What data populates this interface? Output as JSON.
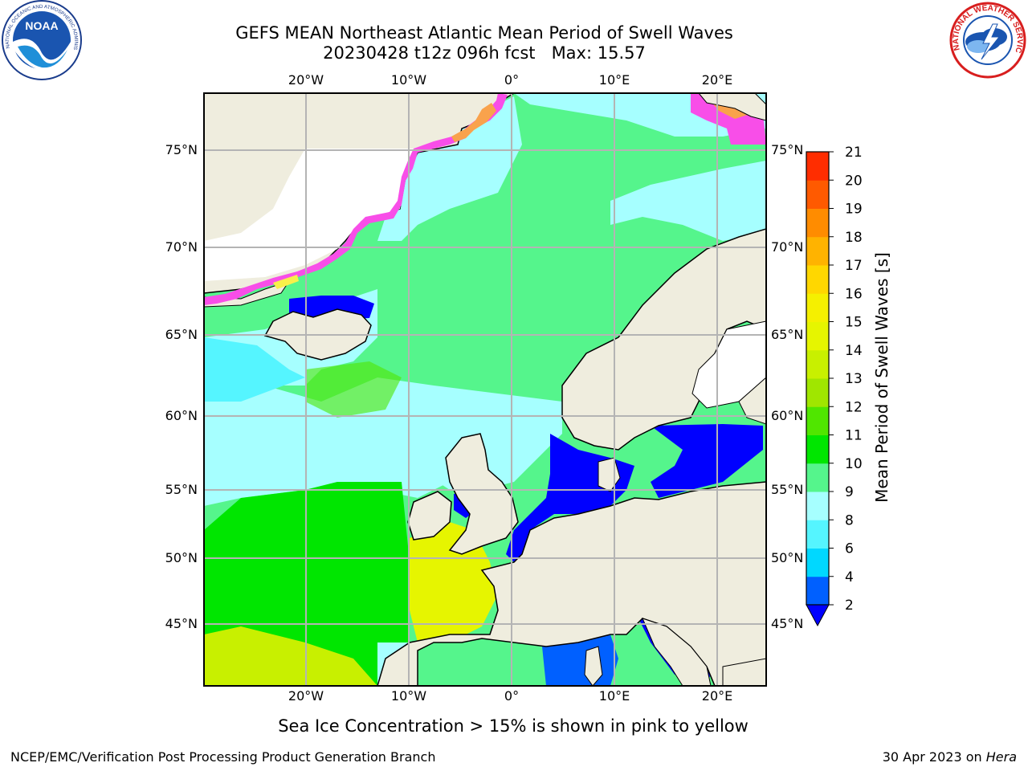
{
  "header": {
    "title_line1": "GEFS MEAN Northeast Atlantic Mean Period of Swell Waves",
    "title_line2": "20230428 t12z 096h fcst   Max: 15.57"
  },
  "logos": {
    "noaa_text": "NOAA",
    "noaa_ring_text": "NATIONAL OCEANIC AND ATMOSPHERIC ADMINISTRATION · U.S. DEPARTMENT OF COMMERCE",
    "nws_ring_text": "NATIONAL WEATHER SERVICE"
  },
  "map": {
    "lon_labels_top": [
      "20°W",
      "10°W",
      "0°",
      "10°E",
      "20°E"
    ],
    "lon_labels_bottom": [
      "20°W",
      "10°W",
      "0°",
      "10°E",
      "20°E"
    ],
    "lat_labels_left": [
      "75°N",
      "70°N",
      "65°N",
      "60°N",
      "55°N",
      "50°N",
      "45°N"
    ],
    "lat_labels_right": [
      "75°N",
      "70°N",
      "65°N",
      "60°N",
      "55°N",
      "50°N",
      "45°N"
    ],
    "colors": {
      "land": "#efedde",
      "ice_pink": "#f84ee8",
      "ice_orange": "#f9a24c",
      "ice_yellow": "#f8f04a"
    }
  },
  "colorbar": {
    "label": "Mean Period of Swell Waves [s]",
    "ticks": [
      "2",
      "4",
      "6",
      "8",
      "9",
      "10",
      "11",
      "12",
      "13",
      "14",
      "15",
      "16",
      "17",
      "18",
      "19",
      "20",
      "21"
    ],
    "colors": [
      "#0060ff",
      "#00d8ff",
      "#55f5ff",
      "#a6ffff",
      "#55f58c",
      "#00e600",
      "#50e600",
      "#a0e600",
      "#c8f000",
      "#e6f500",
      "#f5f000",
      "#ffd700",
      "#ffb300",
      "#ff8c00",
      "#ff5a00",
      "#ff2d00"
    ],
    "under_color": "#0000ff"
  },
  "annotation": "Sea Ice Concentration > 15% is shown in pink to yellow",
  "footer": {
    "left": "NCEP/EMC/Verification Post Processing Product Generation Branch",
    "right_prefix": "30 Apr 2023 on ",
    "right_host": "Hera"
  }
}
